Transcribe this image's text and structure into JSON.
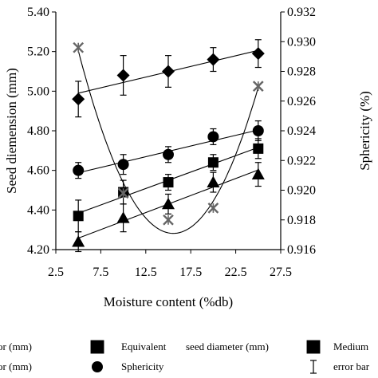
{
  "chart_data": {
    "type": "scatter",
    "x_axis": {
      "label": "Moisture content (%db)",
      "ticks": [
        "2.5",
        "7.5",
        "12.5",
        "17.5",
        "22.5",
        "27.5"
      ],
      "range": [
        2.5,
        27.5
      ]
    },
    "y_axis_left": {
      "label": "Seed diemension (mm)",
      "ticks": [
        "4.20",
        "4.40",
        "4.60",
        "4.80",
        "5.00",
        "5.20",
        "5.40"
      ],
      "range": [
        4.2,
        5.4
      ]
    },
    "y_axis_right": {
      "label": "Sphericity (%)",
      "ticks": [
        "0.916",
        "0.918",
        "0.920",
        "0.922",
        "0.924",
        "0.926",
        "0.928",
        "0.930",
        "0.932"
      ],
      "range": [
        0.916,
        0.932
      ]
    },
    "x": [
      5,
      10,
      15,
      20,
      25
    ],
    "series": [
      {
        "name": "Major (mm)",
        "marker": "diamond",
        "axis": "left",
        "values": [
          4.96,
          5.08,
          5.1,
          5.16,
          5.19
        ],
        "errors": [
          0.09,
          0.1,
          0.08,
          0.06,
          0.07
        ],
        "trend": "linear"
      },
      {
        "name": "Minor (mm)",
        "marker": "circle",
        "axis": "left",
        "values": [
          4.6,
          4.63,
          4.68,
          4.77,
          4.8
        ],
        "errors": [
          0.04,
          0.05,
          0.04,
          0.04,
          0.05
        ],
        "trend": "linear"
      },
      {
        "name": "Equivalent seed diameter (mm)",
        "marker": "square",
        "axis": "left",
        "values": [
          4.37,
          4.49,
          4.54,
          4.64,
          4.71
        ],
        "errors": [
          0.08,
          0.06,
          0.04,
          0.04,
          0.05
        ],
        "trend": "linear"
      },
      {
        "name": "Medium",
        "marker": "triangle",
        "axis": "left",
        "values": [
          4.24,
          4.36,
          4.43,
          4.54,
          4.58
        ],
        "errors": [
          0.05,
          0.07,
          0.05,
          0.05,
          0.06
        ],
        "trend": "linear"
      },
      {
        "name": "Sphericity",
        "marker": "x",
        "axis": "right",
        "values": [
          0.9296,
          0.9198,
          0.918,
          0.9188,
          0.927
        ],
        "errors": [
          0,
          0,
          0,
          0,
          0
        ],
        "trend": "polynomial"
      }
    ],
    "legend": {
      "row1": [
        "Major (mm)",
        "Equivalent",
        "seed diameter (mm)",
        "Medium"
      ],
      "row2": [
        "Minor (mm)",
        "Sphericity",
        "error bar"
      ]
    },
    "grid": false
  }
}
